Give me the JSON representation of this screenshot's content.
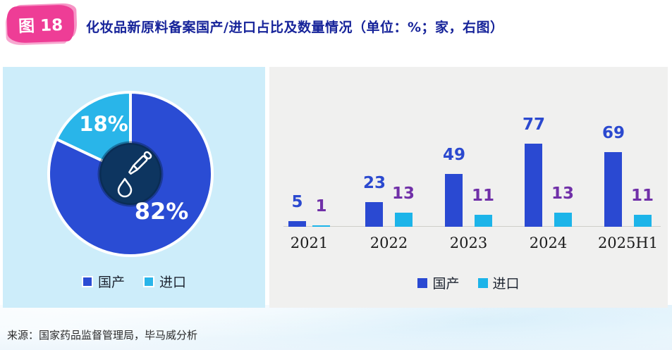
{
  "header": {
    "figure_badge": "图 18",
    "title": "化妆品新原料备案国产/进口占比及数量情况（单位：%；家，右图）"
  },
  "chart_data": [
    {
      "type": "pie",
      "labels": [
        "国产",
        "进口"
      ],
      "values": [
        82,
        18
      ],
      "display_labels": [
        "82%",
        "18%"
      ],
      "colors": [
        "#2a4cd4",
        "#29b5e9"
      ],
      "center_color": "#0d3560",
      "center_icon": "dropper-icon",
      "legend_position": "bottom"
    },
    {
      "type": "bar",
      "categories": [
        "2021",
        "2022",
        "2023",
        "2024",
        "2025H1"
      ],
      "series": [
        {
          "name": "国产",
          "values": [
            5,
            23,
            49,
            77,
            69
          ],
          "color": "#2a49d2",
          "label_color": "#2b49cf"
        },
        {
          "name": "进口",
          "values": [
            1,
            13,
            11,
            13,
            11
          ],
          "color": "#1cb4e9",
          "label_color": "#7030a8"
        }
      ],
      "ylim": [
        0,
        85
      ],
      "grid": false,
      "legend_position": "bottom"
    }
  ],
  "footer": {
    "source": "来源：国家药品监督管理局，毕马威分析"
  }
}
